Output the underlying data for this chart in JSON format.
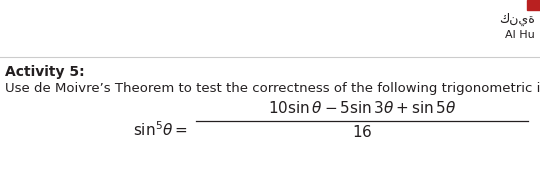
{
  "bg_color": "#ffffff",
  "top_arabic_text": "كنية",
  "top_latin_text": "Al Hu",
  "horizontal_line_color": "#cccccc",
  "activity_label": "Activity 5:",
  "body_text": "Use de Moivre’s Theorem to test the correctness of the following trigonometric identity:",
  "text_color": "#231f20",
  "red_color": "#b92020",
  "activity_fontsize": 10,
  "body_fontsize": 9.5,
  "formula_fontsize": 11
}
